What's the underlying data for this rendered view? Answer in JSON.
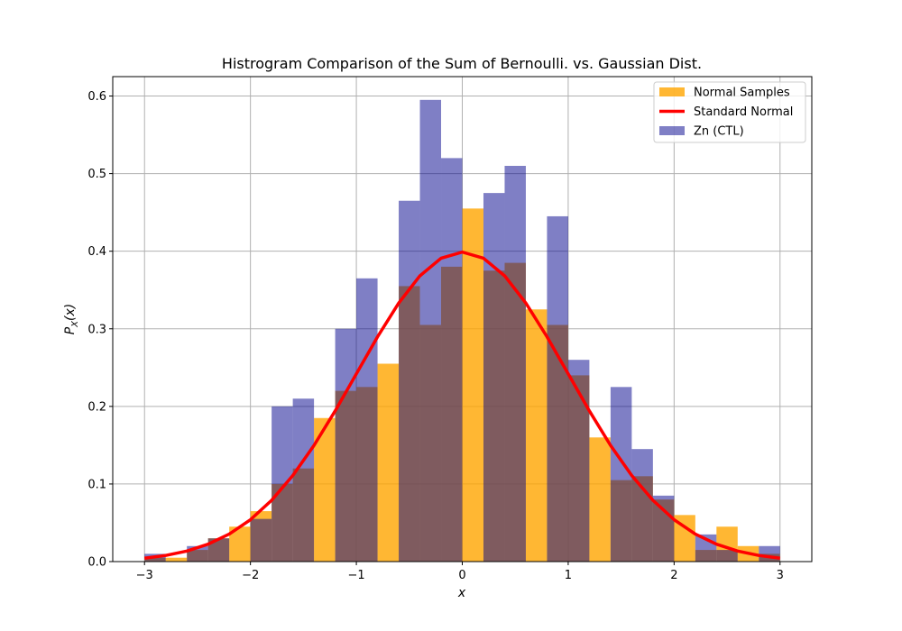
{
  "chart_data": {
    "type": "bar",
    "title": "Histrogram Comparison of the Sum of Bernoulli. vs. Gaussian Dist.",
    "xlabel": "x",
    "ylabel": "P_X(x)",
    "xlim": [
      -3.3,
      3.3
    ],
    "ylim": [
      0,
      0.625
    ],
    "xticks": [
      -3,
      -2,
      -1,
      0,
      1,
      2,
      3
    ],
    "xtick_labels": [
      "−3",
      "−2",
      "−1",
      "0",
      "1",
      "2",
      "3"
    ],
    "yticks": [
      0.0,
      0.1,
      0.2,
      0.3,
      0.4,
      0.5,
      0.6
    ],
    "ytick_labels": [
      "0.0",
      "0.1",
      "0.2",
      "0.3",
      "0.4",
      "0.5",
      "0.6"
    ],
    "grid": true,
    "legend_position": "top-right",
    "bin_width": 0.2,
    "series": [
      {
        "name": "Normal Samples",
        "kind": "histogram",
        "color": "#ffa500",
        "alpha": 0.8,
        "bins": [
          {
            "x0": -3.0,
            "x1": -2.8,
            "value": 0.005
          },
          {
            "x0": -2.8,
            "x1": -2.6,
            "value": 0.005
          },
          {
            "x0": -2.6,
            "x1": -2.4,
            "value": 0.015
          },
          {
            "x0": -2.4,
            "x1": -2.2,
            "value": 0.03
          },
          {
            "x0": -2.2,
            "x1": -2.0,
            "value": 0.045
          },
          {
            "x0": -2.0,
            "x1": -1.8,
            "value": 0.065
          },
          {
            "x0": -1.8,
            "x1": -1.6,
            "value": 0.1
          },
          {
            "x0": -1.6,
            "x1": -1.4,
            "value": 0.12
          },
          {
            "x0": -1.4,
            "x1": -1.2,
            "value": 0.185
          },
          {
            "x0": -1.2,
            "x1": -1.0,
            "value": 0.22
          },
          {
            "x0": -1.0,
            "x1": -0.8,
            "value": 0.225
          },
          {
            "x0": -0.8,
            "x1": -0.6,
            "value": 0.255
          },
          {
            "x0": -0.6,
            "x1": -0.4,
            "value": 0.355
          },
          {
            "x0": -0.4,
            "x1": -0.2,
            "value": 0.305
          },
          {
            "x0": -0.2,
            "x1": 0.0,
            "value": 0.38
          },
          {
            "x0": 0.0,
            "x1": 0.2,
            "value": 0.455
          },
          {
            "x0": 0.2,
            "x1": 0.4,
            "value": 0.375
          },
          {
            "x0": 0.4,
            "x1": 0.6,
            "value": 0.385
          },
          {
            "x0": 0.6,
            "x1": 0.8,
            "value": 0.325
          },
          {
            "x0": 0.8,
            "x1": 1.0,
            "value": 0.305
          },
          {
            "x0": 1.0,
            "x1": 1.2,
            "value": 0.24
          },
          {
            "x0": 1.2,
            "x1": 1.4,
            "value": 0.16
          },
          {
            "x0": 1.4,
            "x1": 1.6,
            "value": 0.105
          },
          {
            "x0": 1.6,
            "x1": 1.8,
            "value": 0.11
          },
          {
            "x0": 1.8,
            "x1": 2.0,
            "value": 0.08
          },
          {
            "x0": 2.0,
            "x1": 2.2,
            "value": 0.06
          },
          {
            "x0": 2.2,
            "x1": 2.4,
            "value": 0.015
          },
          {
            "x0": 2.4,
            "x1": 2.6,
            "value": 0.045
          },
          {
            "x0": 2.6,
            "x1": 2.8,
            "value": 0.02
          },
          {
            "x0": 2.8,
            "x1": 3.0,
            "value": 0.01
          }
        ]
      },
      {
        "name": "Standard Normal",
        "kind": "line",
        "color": "#ff0000",
        "x": [
          -3.0,
          -2.8,
          -2.6,
          -2.4,
          -2.2,
          -2.0,
          -1.8,
          -1.6,
          -1.4,
          -1.2,
          -1.0,
          -0.8,
          -0.6,
          -0.4,
          -0.2,
          0.0,
          0.2,
          0.4,
          0.6,
          0.8,
          1.0,
          1.2,
          1.4,
          1.6,
          1.8,
          2.0,
          2.2,
          2.4,
          2.6,
          2.8,
          3.0
        ],
        "y": [
          0.0044,
          0.0079,
          0.0136,
          0.0224,
          0.0355,
          0.054,
          0.079,
          0.1109,
          0.1497,
          0.1942,
          0.242,
          0.2897,
          0.3332,
          0.3683,
          0.391,
          0.3989,
          0.391,
          0.3683,
          0.3332,
          0.2897,
          0.242,
          0.1942,
          0.1497,
          0.1109,
          0.079,
          0.054,
          0.0355,
          0.0224,
          0.0136,
          0.0079,
          0.0044
        ]
      },
      {
        "name": "Zn (CTL)",
        "kind": "histogram",
        "color": "#00008b",
        "alpha": 0.5,
        "bins": [
          {
            "x0": -3.0,
            "x1": -2.8,
            "value": 0.01
          },
          {
            "x0": -2.6,
            "x1": -2.4,
            "value": 0.02
          },
          {
            "x0": -2.4,
            "x1": -2.2,
            "value": 0.03
          },
          {
            "x0": -2.0,
            "x1": -1.8,
            "value": 0.055
          },
          {
            "x0": -1.8,
            "x1": -1.6,
            "value": 0.2
          },
          {
            "x0": -1.6,
            "x1": -1.4,
            "value": 0.21
          },
          {
            "x0": -1.2,
            "x1": -1.0,
            "value": 0.3
          },
          {
            "x0": -1.0,
            "x1": -0.8,
            "value": 0.365
          },
          {
            "x0": -0.6,
            "x1": -0.4,
            "value": 0.465
          },
          {
            "x0": -0.4,
            "x1": -0.2,
            "value": 0.595
          },
          {
            "x0": -0.2,
            "x1": 0.0,
            "value": 0.52
          },
          {
            "x0": 0.2,
            "x1": 0.4,
            "value": 0.475
          },
          {
            "x0": 0.4,
            "x1": 0.6,
            "value": 0.51
          },
          {
            "x0": 0.8,
            "x1": 1.0,
            "value": 0.445
          },
          {
            "x0": 1.0,
            "x1": 1.2,
            "value": 0.26
          },
          {
            "x0": 1.4,
            "x1": 1.6,
            "value": 0.225
          },
          {
            "x0": 1.6,
            "x1": 1.8,
            "value": 0.145
          },
          {
            "x0": 1.8,
            "x1": 2.0,
            "value": 0.085
          },
          {
            "x0": 2.2,
            "x1": 2.4,
            "value": 0.035
          },
          {
            "x0": 2.4,
            "x1": 2.6,
            "value": 0.015
          },
          {
            "x0": 2.8,
            "x1": 3.0,
            "value": 0.02
          }
        ]
      }
    ],
    "legend": [
      {
        "label": "Normal Samples",
        "marker": "patch",
        "color": "#ffa500",
        "alpha": 0.8
      },
      {
        "label": "Standard Normal",
        "marker": "line",
        "color": "#ff0000"
      },
      {
        "label": "Zn (CTL)",
        "marker": "patch",
        "color": "#00008b",
        "alpha": 0.5
      }
    ]
  }
}
